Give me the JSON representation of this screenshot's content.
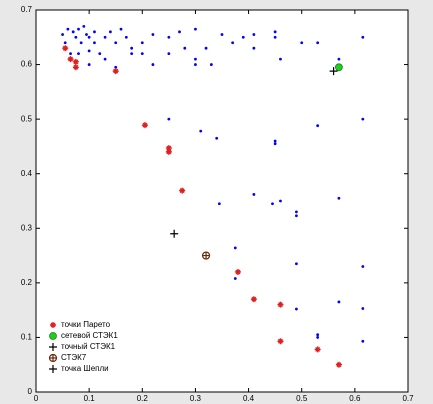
{
  "chart_data": {
    "type": "scatter",
    "xlim": [
      0,
      0.7
    ],
    "ylim": [
      0,
      0.7
    ],
    "xticks": [
      0,
      0.1,
      0.2,
      0.3,
      0.4,
      0.5,
      0.6,
      0.7
    ],
    "yticks": [
      0,
      0.1,
      0.2,
      0.3,
      0.4,
      0.5,
      0.6,
      0.7
    ],
    "legend": "lower-left",
    "series": [
      {
        "color": "#0000ff",
        "marker": "dot",
        "x": [
          0.05,
          0.055,
          0.06,
          0.065,
          0.07,
          0.075,
          0.08,
          0.085,
          0.09,
          0.095,
          0.1,
          0.1,
          0.11,
          0.11,
          0.12,
          0.13,
          0.14,
          0.15,
          0.16,
          0.17,
          0.18,
          0.18,
          0.2,
          0.2,
          0.22,
          0.22,
          0.25,
          0.25,
          0.27,
          0.28,
          0.3,
          0.3,
          0.3,
          0.32,
          0.33,
          0.35,
          0.37,
          0.39,
          0.41,
          0.41,
          0.45,
          0.45,
          0.46,
          0.5,
          0.53,
          0.57,
          0.615,
          0.1,
          0.15,
          0.08,
          0.13,
          0.25,
          0.31,
          0.34,
          0.53,
          0.615,
          0.45,
          0.45,
          0.41,
          0.445,
          0.46,
          0.345,
          0.49,
          0.49,
          0.57,
          0.375,
          0.49,
          0.615,
          0.375,
          0.57,
          0.49,
          0.615,
          0.53,
          0.615,
          0.46,
          0.41,
          0.53
        ],
        "y": [
          0.655,
          0.64,
          0.665,
          0.62,
          0.66,
          0.65,
          0.665,
          0.64,
          0.67,
          0.655,
          0.65,
          0.625,
          0.64,
          0.66,
          0.62,
          0.65,
          0.66,
          0.64,
          0.665,
          0.65,
          0.63,
          0.62,
          0.64,
          0.62,
          0.655,
          0.6,
          0.62,
          0.65,
          0.66,
          0.63,
          0.665,
          0.61,
          0.6,
          0.63,
          0.6,
          0.655,
          0.64,
          0.65,
          0.63,
          0.655,
          0.66,
          0.65,
          0.61,
          0.64,
          0.64,
          0.61,
          0.65,
          0.6,
          0.595,
          0.62,
          0.61,
          0.5,
          0.478,
          0.465,
          0.488,
          0.5,
          0.46,
          0.455,
          0.362,
          0.345,
          0.35,
          0.345,
          0.33,
          0.323,
          0.355,
          0.264,
          0.235,
          0.23,
          0.208,
          0.165,
          0.152,
          0.153,
          0.105,
          0.093,
          0.162,
          0.17,
          0.1
        ]
      },
      {
        "name": "точки Парето",
        "color": "#e02020",
        "marker": "star",
        "x": [
          0.055,
          0.065,
          0.075,
          0.075,
          0.15,
          0.205,
          0.25,
          0.25,
          0.275,
          0.38,
          0.41,
          0.46,
          0.46,
          0.53,
          0.57
        ],
        "y": [
          0.63,
          0.61,
          0.605,
          0.595,
          0.588,
          0.489,
          0.447,
          0.44,
          0.369,
          0.22,
          0.17,
          0.16,
          0.093,
          0.078,
          0.05
        ]
      },
      {
        "name": "сетевой СТЭК1",
        "color": "#22cc22",
        "marker": "disc",
        "x": [
          0.57
        ],
        "y": [
          0.595
        ]
      },
      {
        "name": "точный СТЭК1",
        "color": "#000000",
        "marker": "plus",
        "x": [
          0.56
        ],
        "y": [
          0.588
        ]
      },
      {
        "name": "СТЭК7",
        "color": "#6b2a10",
        "marker": "circle",
        "x": [
          0.32
        ],
        "y": [
          0.25
        ]
      },
      {
        "name": "точка Шепли",
        "color": "#000000",
        "marker": "plus",
        "x": [
          0.26
        ],
        "y": [
          0.29
        ]
      }
    ]
  }
}
